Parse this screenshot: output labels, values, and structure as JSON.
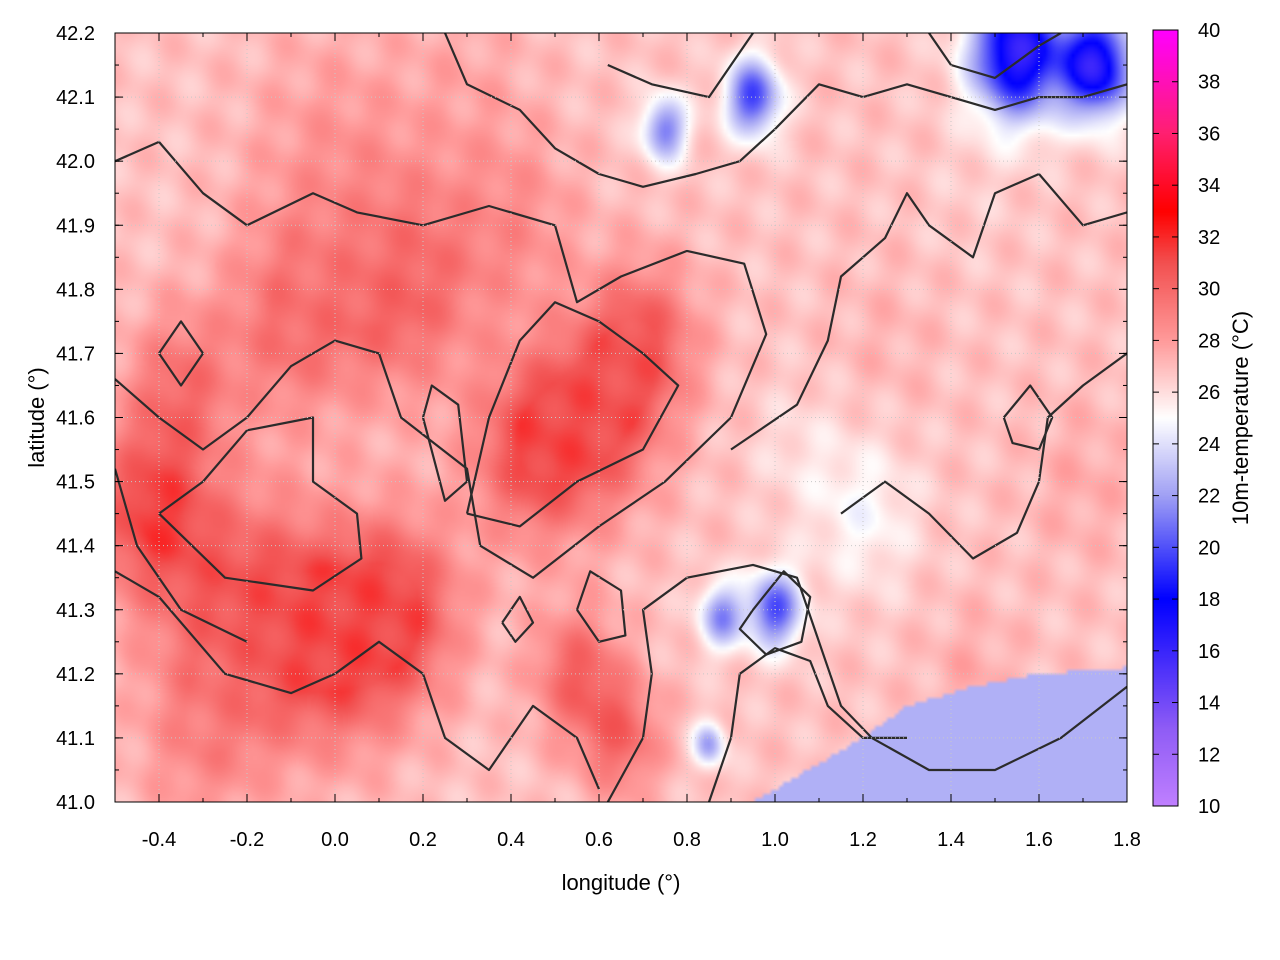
{
  "chart_data": {
    "type": "heatmap",
    "xlabel": "longitude (°)",
    "ylabel": "latitude (°)",
    "colorbar_label": "10m-temperature (°C)",
    "xlim": [
      -0.5,
      1.8
    ],
    "ylim": [
      41.0,
      42.2
    ],
    "zlim": [
      10,
      40
    ],
    "x_ticks": [
      "-0.4",
      "-0.2",
      "0.0",
      "0.2",
      "0.4",
      "0.6",
      "0.8",
      "1.0",
      "1.2",
      "1.4",
      "1.6",
      "1.8"
    ],
    "x_tick_values": [
      -0.4,
      -0.2,
      0.0,
      0.2,
      0.4,
      0.6,
      0.8,
      1.0,
      1.2,
      1.4,
      1.6,
      1.8
    ],
    "y_ticks": [
      "41.0",
      "41.1",
      "41.2",
      "41.3",
      "41.4",
      "41.5",
      "41.6",
      "41.7",
      "41.8",
      "41.9",
      "42.0",
      "42.1",
      "42.2"
    ],
    "y_tick_values": [
      41.0,
      41.1,
      41.2,
      41.3,
      41.4,
      41.5,
      41.6,
      41.7,
      41.8,
      41.9,
      42.0,
      42.1,
      42.2
    ],
    "colorbar_ticks": [
      "10",
      "12",
      "14",
      "16",
      "18",
      "20",
      "22",
      "24",
      "26",
      "28",
      "30",
      "32",
      "34",
      "36",
      "38",
      "40"
    ],
    "colorbar_tick_values": [
      10,
      12,
      14,
      16,
      18,
      20,
      22,
      24,
      26,
      28,
      30,
      32,
      34,
      36,
      38,
      40
    ],
    "colormap": [
      {
        "value": 10,
        "color": "#c080ff"
      },
      {
        "value": 13,
        "color": "#8f5cf5"
      },
      {
        "value": 18,
        "color": "#0000ff"
      },
      {
        "value": 22,
        "color": "#a0a0f4"
      },
      {
        "value": 25,
        "color": "#ffffff"
      },
      {
        "value": 28,
        "color": "#ff9a9a"
      },
      {
        "value": 31,
        "color": "#f25050"
      },
      {
        "value": 33,
        "color": "#ff0000"
      },
      {
        "value": 36,
        "color": "#ff2070"
      },
      {
        "value": 40,
        "color": "#ff00ff"
      }
    ],
    "field_blobs": [
      {
        "lon": -0.42,
        "lat": 41.45,
        "t": 31.2,
        "r": 0.14
      },
      {
        "lon": -0.35,
        "lat": 41.65,
        "t": 29.5,
        "r": 0.12
      },
      {
        "lon": -0.2,
        "lat": 41.3,
        "t": 30.5,
        "r": 0.18
      },
      {
        "lon": 0.0,
        "lat": 41.25,
        "t": 31.0,
        "r": 0.16
      },
      {
        "lon": 0.15,
        "lat": 41.3,
        "t": 30.6,
        "r": 0.14
      },
      {
        "lon": 0.45,
        "lat": 41.55,
        "t": 30.9,
        "r": 0.14
      },
      {
        "lon": 0.6,
        "lat": 41.6,
        "t": 30.6,
        "r": 0.14
      },
      {
        "lon": 0.7,
        "lat": 41.72,
        "t": 30.3,
        "r": 0.12
      },
      {
        "lon": 0.15,
        "lat": 41.8,
        "t": 30.2,
        "r": 0.16
      },
      {
        "lon": -0.1,
        "lat": 41.75,
        "t": 29.6,
        "r": 0.15
      },
      {
        "lon": 0.4,
        "lat": 41.9,
        "t": 28.5,
        "r": 0.15
      },
      {
        "lon": 0.0,
        "lat": 42.0,
        "t": 28.2,
        "r": 0.2
      },
      {
        "lon": 0.3,
        "lat": 42.12,
        "t": 27.5,
        "r": 0.15
      },
      {
        "lon": 0.55,
        "lat": 41.2,
        "t": 30.2,
        "r": 0.1
      },
      {
        "lon": 0.65,
        "lat": 41.1,
        "t": 30.0,
        "r": 0.09
      },
      {
        "lon": -0.3,
        "lat": 41.1,
        "t": 28.5,
        "r": 0.15
      },
      {
        "lon": 0.95,
        "lat": 42.1,
        "t": 19.5,
        "r": 0.06
      },
      {
        "lon": 1.55,
        "lat": 42.17,
        "t": 16.0,
        "r": 0.1
      },
      {
        "lon": 1.73,
        "lat": 42.15,
        "t": 16.5,
        "r": 0.08
      },
      {
        "lon": 0.75,
        "lat": 42.05,
        "t": 21.0,
        "r": 0.05
      },
      {
        "lon": 1.0,
        "lat": 41.3,
        "t": 20.0,
        "r": 0.06
      },
      {
        "lon": 0.88,
        "lat": 41.29,
        "t": 21.5,
        "r": 0.05
      },
      {
        "lon": 0.85,
        "lat": 41.09,
        "t": 22.0,
        "r": 0.035
      },
      {
        "lon": 1.45,
        "lat": 41.2,
        "t": 27.5,
        "r": 0.1
      },
      {
        "lon": 1.7,
        "lat": 41.5,
        "t": 27.5,
        "r": 0.12
      },
      {
        "lon": 1.25,
        "lat": 41.72,
        "t": 27.2,
        "r": 0.12
      },
      {
        "lon": 1.45,
        "lat": 41.95,
        "t": 26.5,
        "r": 0.12
      },
      {
        "lon": 1.2,
        "lat": 41.45,
        "t": 25.0,
        "r": 0.12
      },
      {
        "lon": 1.05,
        "lat": 41.55,
        "t": 26.0,
        "r": 0.1
      }
    ],
    "sea_region": {
      "t": 22.5,
      "boundary": [
        [
          0.95,
          41.0
        ],
        [
          1.1,
          41.06
        ],
        [
          1.2,
          41.1
        ],
        [
          1.3,
          41.15
        ],
        [
          1.45,
          41.18
        ],
        [
          1.6,
          41.2
        ],
        [
          1.8,
          41.21
        ],
        [
          1.8,
          41.0
        ]
      ]
    },
    "contours": [
      [
        [
          -0.5,
          41.66
        ],
        [
          -0.4,
          41.6
        ],
        [
          -0.3,
          41.55
        ],
        [
          -0.2,
          41.6
        ],
        [
          -0.1,
          41.68
        ],
        [
          0.0,
          41.72
        ],
        [
          0.1,
          41.7
        ],
        [
          0.15,
          41.6
        ],
        [
          0.3,
          41.52
        ],
        [
          0.33,
          41.4
        ],
        [
          0.45,
          41.35
        ],
        [
          0.6,
          41.43
        ],
        [
          0.75,
          41.5
        ],
        [
          0.9,
          41.6
        ],
        [
          0.98,
          41.73
        ],
        [
          0.93,
          41.84
        ],
        [
          0.8,
          41.86
        ],
        [
          0.65,
          41.82
        ],
        [
          0.55,
          41.78
        ],
        [
          0.5,
          41.9
        ],
        [
          0.35,
          41.93
        ],
        [
          0.2,
          41.9
        ],
        [
          0.05,
          41.92
        ],
        [
          -0.05,
          41.95
        ],
        [
          -0.2,
          41.9
        ],
        [
          -0.3,
          41.95
        ],
        [
          -0.4,
          42.03
        ],
        [
          -0.5,
          42.0
        ]
      ],
      [
        [
          -0.5,
          41.36
        ],
        [
          -0.4,
          41.32
        ],
        [
          -0.25,
          41.2
        ],
        [
          -0.1,
          41.17
        ],
        [
          0.0,
          41.2
        ],
        [
          0.1,
          41.25
        ],
        [
          0.2,
          41.2
        ],
        [
          0.25,
          41.1
        ],
        [
          0.35,
          41.05
        ],
        [
          0.45,
          41.15
        ],
        [
          0.55,
          41.1
        ],
        [
          0.6,
          41.02
        ]
      ],
      [
        [
          -0.4,
          41.45
        ],
        [
          -0.25,
          41.35
        ],
        [
          -0.05,
          41.33
        ],
        [
          0.06,
          41.38
        ],
        [
          0.05,
          41.45
        ],
        [
          -0.05,
          41.5
        ],
        [
          -0.05,
          41.6
        ],
        [
          -0.2,
          41.58
        ],
        [
          -0.3,
          41.5
        ],
        [
          -0.4,
          41.45
        ]
      ],
      [
        [
          0.3,
          41.45
        ],
        [
          0.35,
          41.6
        ],
        [
          0.42,
          41.72
        ],
        [
          0.5,
          41.78
        ],
        [
          0.6,
          41.75
        ],
        [
          0.7,
          41.7
        ],
        [
          0.78,
          41.65
        ],
        [
          0.7,
          41.55
        ],
        [
          0.55,
          41.5
        ],
        [
          0.42,
          41.43
        ],
        [
          0.3,
          41.45
        ]
      ],
      [
        [
          0.62,
          41.0
        ],
        [
          0.7,
          41.1
        ],
        [
          0.72,
          41.2
        ],
        [
          0.7,
          41.3
        ],
        [
          0.8,
          41.35
        ],
        [
          0.95,
          41.37
        ],
        [
          1.05,
          41.35
        ],
        [
          1.1,
          41.25
        ],
        [
          1.15,
          41.15
        ],
        [
          1.22,
          41.1
        ],
        [
          1.35,
          41.05
        ],
        [
          1.5,
          41.05
        ],
        [
          1.65,
          41.1
        ],
        [
          1.8,
          41.18
        ]
      ],
      [
        [
          0.85,
          41.0
        ],
        [
          0.9,
          41.1
        ],
        [
          0.92,
          41.2
        ],
        [
          1.0,
          41.24
        ],
        [
          1.08,
          41.22
        ],
        [
          1.12,
          41.15
        ],
        [
          1.2,
          41.1
        ],
        [
          1.3,
          41.1
        ]
      ],
      [
        [
          0.95,
          41.3
        ],
        [
          1.02,
          41.36
        ],
        [
          1.08,
          41.32
        ],
        [
          1.06,
          41.25
        ],
        [
          0.98,
          41.23
        ],
        [
          0.92,
          41.27
        ],
        [
          0.95,
          41.3
        ]
      ],
      [
        [
          1.15,
          41.45
        ],
        [
          1.25,
          41.5
        ],
        [
          1.35,
          41.45
        ],
        [
          1.45,
          41.38
        ],
        [
          1.55,
          41.42
        ],
        [
          1.6,
          41.5
        ],
        [
          1.62,
          41.6
        ],
        [
          1.7,
          41.65
        ],
        [
          1.8,
          41.7
        ]
      ],
      [
        [
          0.9,
          41.55
        ],
        [
          1.05,
          41.62
        ],
        [
          1.12,
          41.72
        ],
        [
          1.15,
          41.82
        ],
        [
          1.25,
          41.88
        ],
        [
          1.3,
          41.95
        ],
        [
          1.35,
          41.9
        ],
        [
          1.45,
          41.85
        ],
        [
          1.5,
          41.95
        ],
        [
          1.6,
          41.98
        ],
        [
          1.7,
          41.9
        ],
        [
          1.8,
          41.92
        ]
      ],
      [
        [
          0.25,
          42.2
        ],
        [
          0.3,
          42.12
        ],
        [
          0.42,
          42.08
        ],
        [
          0.5,
          42.02
        ],
        [
          0.6,
          41.98
        ],
        [
          0.7,
          41.96
        ],
        [
          0.82,
          41.98
        ],
        [
          0.92,
          42.0
        ],
        [
          1.0,
          42.05
        ],
        [
          1.1,
          42.12
        ],
        [
          1.2,
          42.1
        ],
        [
          1.3,
          42.12
        ],
        [
          1.4,
          42.1
        ],
        [
          1.5,
          42.08
        ],
        [
          1.6,
          42.1
        ],
        [
          1.7,
          42.1
        ],
        [
          1.8,
          42.12
        ]
      ],
      [
        [
          0.62,
          42.15
        ],
        [
          0.72,
          42.12
        ],
        [
          0.85,
          42.1
        ],
        [
          0.9,
          42.15
        ],
        [
          0.95,
          42.2
        ]
      ],
      [
        [
          1.35,
          42.2
        ],
        [
          1.4,
          42.15
        ],
        [
          1.5,
          42.13
        ],
        [
          1.6,
          42.18
        ],
        [
          1.65,
          42.2
        ]
      ],
      [
        [
          0.38,
          41.28
        ],
        [
          0.42,
          41.32
        ],
        [
          0.45,
          41.28
        ],
        [
          0.41,
          41.25
        ],
        [
          0.38,
          41.28
        ]
      ],
      [
        [
          0.55,
          41.3
        ],
        [
          0.6,
          41.25
        ],
        [
          0.66,
          41.26
        ],
        [
          0.65,
          41.33
        ],
        [
          0.58,
          41.36
        ],
        [
          0.55,
          41.3
        ]
      ],
      [
        [
          1.52,
          41.6
        ],
        [
          1.58,
          41.65
        ],
        [
          1.63,
          41.6
        ],
        [
          1.6,
          41.55
        ],
        [
          1.54,
          41.56
        ],
        [
          1.52,
          41.6
        ]
      ],
      [
        [
          -0.4,
          41.7
        ],
        [
          -0.35,
          41.65
        ],
        [
          -0.3,
          41.7
        ],
        [
          -0.35,
          41.75
        ],
        [
          -0.4,
          41.7
        ]
      ],
      [
        [
          0.2,
          41.6
        ],
        [
          0.25,
          41.47
        ],
        [
          0.3,
          41.5
        ],
        [
          0.28,
          41.62
        ],
        [
          0.22,
          41.65
        ],
        [
          0.2,
          41.6
        ]
      ],
      [
        [
          -0.5,
          41.52
        ],
        [
          -0.45,
          41.4
        ],
        [
          -0.35,
          41.3
        ],
        [
          -0.2,
          41.25
        ]
      ]
    ]
  }
}
